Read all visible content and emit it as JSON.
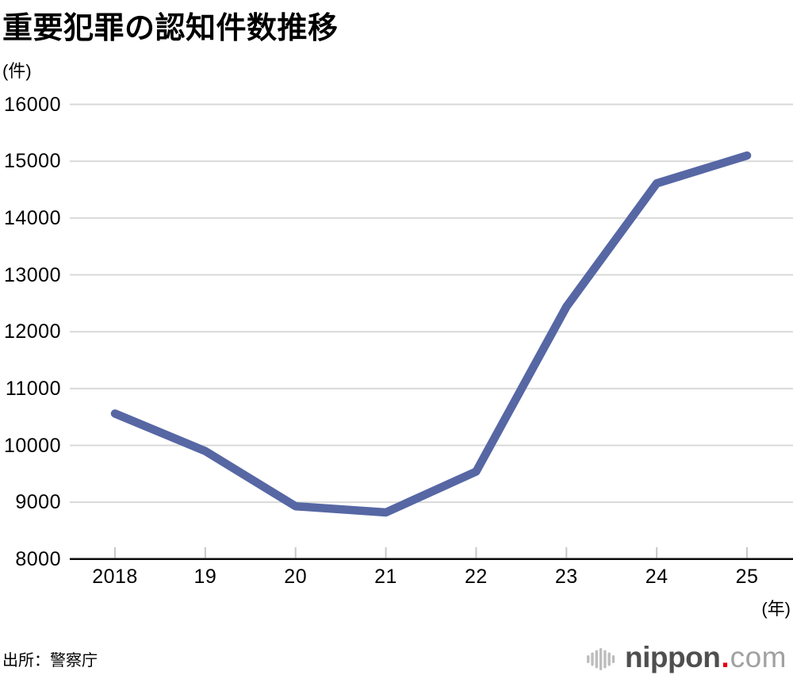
{
  "header": {
    "title": "重要犯罪の認知件数推移",
    "y_axis_unit_label": "(件)"
  },
  "footer": {
    "source": "出所：警察庁",
    "x_axis_unit_label": "(年)"
  },
  "logo": {
    "mark_icon": "equalizer-bars-icon",
    "name": "nippon",
    "dot": ".",
    "tld": "com",
    "name_color": "#4f4f4f",
    "dot_color": "#e60012",
    "tld_color": "#a1a1a1",
    "mark_color": "#bdbdbd"
  },
  "chart_data": {
    "type": "line",
    "title": "重要犯罪の認知件数推移",
    "ylabel": "(件)",
    "xlabel": "(年)",
    "series_name": "重要犯罪の認知件数",
    "x": [
      2018,
      2019,
      2020,
      2021,
      2022,
      2023,
      2024,
      2025
    ],
    "xtick_labels": [
      "2018",
      "19",
      "20",
      "21",
      "22",
      "23",
      "24",
      "25"
    ],
    "values": [
      10560,
      9900,
      8930,
      8820,
      9540,
      12440,
      14610,
      15100
    ],
    "ylim": [
      8000,
      16000
    ],
    "ytick_step": 1000,
    "ytick_labels": [
      "16000",
      "15000",
      "14000",
      "13000",
      "12000",
      "11000",
      "10000",
      "9000",
      "8000"
    ],
    "grid": true,
    "legend_position": "none",
    "line_color": "#5667a4",
    "grid_color": "#d9d9d9",
    "axis_color": "#0a0a0a",
    "tick_color": "#c8c8c8",
    "text_color": "#000000"
  }
}
